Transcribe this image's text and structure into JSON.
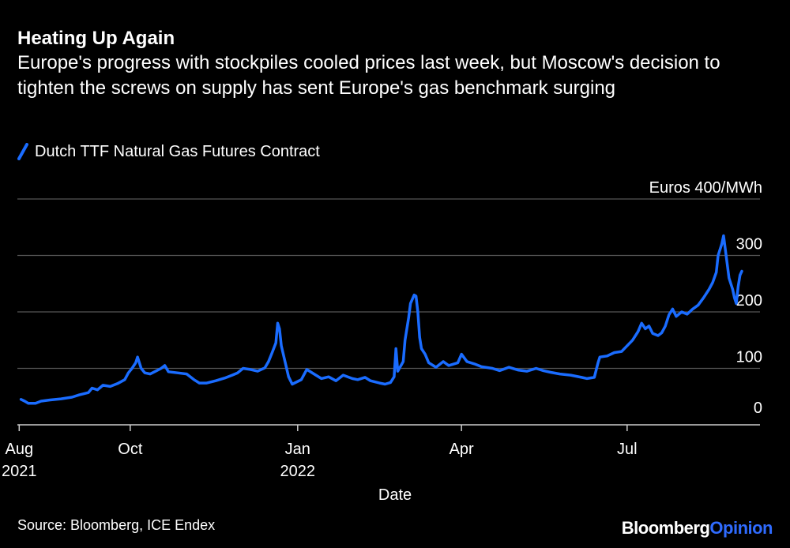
{
  "header": {
    "title": "Heating Up Again",
    "subtitle": "Europe's progress with stockpiles cooled prices last week, but Moscow's decision to tighten the screws on supply has sent Europe's gas benchmark surging"
  },
  "footer": {
    "source": "Source: Bloomberg, ICE Endex",
    "brand_primary": "Bloomberg",
    "brand_secondary": "Opinion"
  },
  "colors": {
    "background": "#000000",
    "series": "#1a6cff",
    "grid": "#555555",
    "text": "#ffffff",
    "brand_accent": "#2f6bff"
  },
  "chart_data": {
    "type": "line",
    "title": "Heating Up Again",
    "subtitle": "Europe's progress with stockpiles cooled prices last week, but Moscow's decision to tighten the screws on supply has sent Europe's gas benchmark surging",
    "xlabel": "Date",
    "ylabel": "Euros 400/MWh",
    "ylim": [
      0,
      400
    ],
    "xlim": [
      "2021-07-31",
      "2022-09-12"
    ],
    "y_ticks": [
      {
        "value": 100,
        "label": "100"
      },
      {
        "value": 200,
        "label": "200"
      },
      {
        "value": 300,
        "label": "300"
      },
      {
        "value": 400,
        "label": "Euros 400/MWh"
      }
    ],
    "y_zero_label": "0",
    "x_ticks": [
      {
        "date": "2021-08-01",
        "label": "Aug",
        "sublabel": "2021"
      },
      {
        "date": "2021-10-01",
        "label": "Oct",
        "sublabel": ""
      },
      {
        "date": "2022-01-01",
        "label": "Jan",
        "sublabel": "2022"
      },
      {
        "date": "2022-04-01",
        "label": "Apr",
        "sublabel": ""
      },
      {
        "date": "2022-07-01",
        "label": "Jul",
        "sublabel": ""
      }
    ],
    "grid": true,
    "legend_position": "top-left",
    "series": [
      {
        "name": "Dutch TTF Natural Gas Futures Contract",
        "color": "#1a6cff",
        "points": [
          [
            "2021-08-02",
            45
          ],
          [
            "2021-08-04",
            42
          ],
          [
            "2021-08-06",
            38
          ],
          [
            "2021-08-10",
            38
          ],
          [
            "2021-08-13",
            42
          ],
          [
            "2021-08-18",
            44
          ],
          [
            "2021-08-24",
            46
          ],
          [
            "2021-08-30",
            49
          ],
          [
            "2021-09-03",
            53
          ],
          [
            "2021-09-08",
            57
          ],
          [
            "2021-09-10",
            65
          ],
          [
            "2021-09-13",
            62
          ],
          [
            "2021-09-16",
            70
          ],
          [
            "2021-09-20",
            68
          ],
          [
            "2021-09-24",
            73
          ],
          [
            "2021-09-28",
            80
          ],
          [
            "2021-09-30",
            92
          ],
          [
            "2021-10-02",
            100
          ],
          [
            "2021-10-04",
            110
          ],
          [
            "2021-10-05",
            120
          ],
          [
            "2021-10-07",
            100
          ],
          [
            "2021-10-09",
            92
          ],
          [
            "2021-10-12",
            90
          ],
          [
            "2021-10-15",
            95
          ],
          [
            "2021-10-18",
            100
          ],
          [
            "2021-10-20",
            105
          ],
          [
            "2021-10-22",
            94
          ],
          [
            "2021-10-27",
            92
          ],
          [
            "2021-11-01",
            90
          ],
          [
            "2021-11-05",
            80
          ],
          [
            "2021-11-08",
            74
          ],
          [
            "2021-11-12",
            74
          ],
          [
            "2021-11-17",
            78
          ],
          [
            "2021-11-22",
            83
          ],
          [
            "2021-11-26",
            88
          ],
          [
            "2021-11-29",
            92
          ],
          [
            "2021-12-02",
            100
          ],
          [
            "2021-12-06",
            98
          ],
          [
            "2021-12-10",
            95
          ],
          [
            "2021-12-14",
            101
          ],
          [
            "2021-12-16",
            112
          ],
          [
            "2021-12-18",
            128
          ],
          [
            "2021-12-20",
            145
          ],
          [
            "2021-12-21",
            180
          ],
          [
            "2021-12-22",
            170
          ],
          [
            "2021-12-23",
            140
          ],
          [
            "2021-12-27",
            85
          ],
          [
            "2021-12-29",
            72
          ],
          [
            "2022-01-03",
            80
          ],
          [
            "2022-01-06",
            98
          ],
          [
            "2022-01-10",
            90
          ],
          [
            "2022-01-14",
            82
          ],
          [
            "2022-01-18",
            85
          ],
          [
            "2022-01-22",
            78
          ],
          [
            "2022-01-26",
            88
          ],
          [
            "2022-01-31",
            82
          ],
          [
            "2022-02-03",
            80
          ],
          [
            "2022-02-07",
            84
          ],
          [
            "2022-02-10",
            78
          ],
          [
            "2022-02-15",
            74
          ],
          [
            "2022-02-18",
            72
          ],
          [
            "2022-02-21",
            75
          ],
          [
            "2022-02-23",
            85
          ],
          [
            "2022-02-24",
            135
          ],
          [
            "2022-02-25",
            95
          ],
          [
            "2022-02-28",
            112
          ],
          [
            "2022-03-01",
            150
          ],
          [
            "2022-03-03",
            190
          ],
          [
            "2022-03-04",
            215
          ],
          [
            "2022-03-06",
            230
          ],
          [
            "2022-03-07",
            228
          ],
          [
            "2022-03-08",
            200
          ],
          [
            "2022-03-09",
            155
          ],
          [
            "2022-03-10",
            135
          ],
          [
            "2022-03-12",
            125
          ],
          [
            "2022-03-14",
            110
          ],
          [
            "2022-03-18",
            102
          ],
          [
            "2022-03-22",
            112
          ],
          [
            "2022-03-25",
            105
          ],
          [
            "2022-03-30",
            110
          ],
          [
            "2022-04-01",
            125
          ],
          [
            "2022-04-04",
            112
          ],
          [
            "2022-04-08",
            108
          ],
          [
            "2022-04-12",
            103
          ],
          [
            "2022-04-18",
            100
          ],
          [
            "2022-04-22",
            96
          ],
          [
            "2022-04-27",
            102
          ],
          [
            "2022-05-02",
            97
          ],
          [
            "2022-05-07",
            95
          ],
          [
            "2022-05-12",
            100
          ],
          [
            "2022-05-16",
            96
          ],
          [
            "2022-05-20",
            93
          ],
          [
            "2022-05-25",
            90
          ],
          [
            "2022-05-31",
            88
          ],
          [
            "2022-06-03",
            86
          ],
          [
            "2022-06-06",
            84
          ],
          [
            "2022-06-09",
            82
          ],
          [
            "2022-06-13",
            84
          ],
          [
            "2022-06-15",
            110
          ],
          [
            "2022-06-16",
            120
          ],
          [
            "2022-06-20",
            122
          ],
          [
            "2022-06-24",
            128
          ],
          [
            "2022-06-28",
            130
          ],
          [
            "2022-07-01",
            140
          ],
          [
            "2022-07-04",
            150
          ],
          [
            "2022-07-07",
            165
          ],
          [
            "2022-07-09",
            180
          ],
          [
            "2022-07-11",
            170
          ],
          [
            "2022-07-13",
            175
          ],
          [
            "2022-07-15",
            162
          ],
          [
            "2022-07-18",
            158
          ],
          [
            "2022-07-20",
            163
          ],
          [
            "2022-07-22",
            175
          ],
          [
            "2022-07-24",
            195
          ],
          [
            "2022-07-26",
            205
          ],
          [
            "2022-07-28",
            192
          ],
          [
            "2022-07-31",
            200
          ],
          [
            "2022-08-03",
            196
          ],
          [
            "2022-08-06",
            205
          ],
          [
            "2022-08-09",
            212
          ],
          [
            "2022-08-12",
            225
          ],
          [
            "2022-08-15",
            240
          ],
          [
            "2022-08-17",
            252
          ],
          [
            "2022-08-19",
            270
          ],
          [
            "2022-08-20",
            300
          ],
          [
            "2022-08-22",
            320
          ],
          [
            "2022-08-23",
            335
          ],
          [
            "2022-08-24",
            310
          ],
          [
            "2022-08-25",
            285
          ],
          [
            "2022-08-26",
            260
          ],
          [
            "2022-08-28",
            240
          ],
          [
            "2022-08-29",
            225
          ],
          [
            "2022-08-30",
            215
          ],
          [
            "2022-08-31",
            245
          ],
          [
            "2022-09-01",
            265
          ],
          [
            "2022-09-02",
            272
          ]
        ]
      }
    ]
  }
}
